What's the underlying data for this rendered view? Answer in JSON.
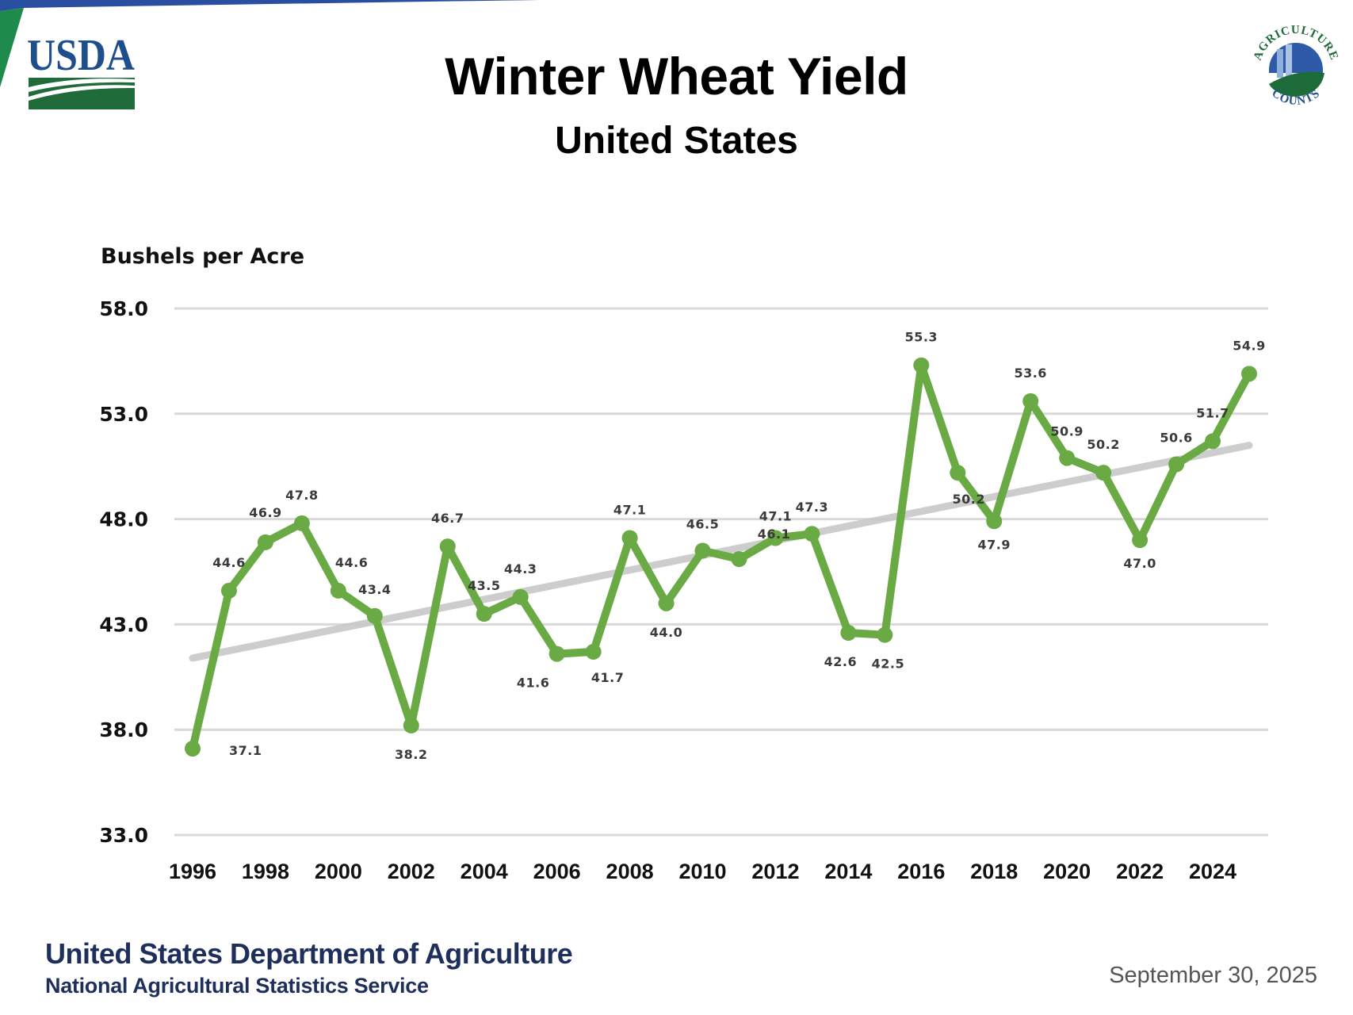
{
  "header": {
    "title": "Winter Wheat Yield",
    "subtitle": "United States",
    "usda_logo_text": "USDA",
    "ag_logo_top_text": "AGRICULTURE",
    "ag_logo_bottom_text": "COUNTS"
  },
  "footer": {
    "organization": "United States Department of Agriculture",
    "agency": "National Agricultural Statistics Service",
    "date": "September 30, 2025"
  },
  "colors": {
    "series": "#6aaa44",
    "trend": "#c8c8c8",
    "grid": "#d9d9d9",
    "usda_blue": "#1f4e8c",
    "usda_green": "#1f6b3a",
    "footer_text": "#1f2f5c"
  },
  "chart_data": {
    "type": "line",
    "title": "Winter Wheat Yield",
    "subtitle": "United States",
    "xlabel": "",
    "ylabel": "Bushels per Acre",
    "ylim": [
      33.0,
      58.0
    ],
    "yticks": [
      "33.0",
      "38.0",
      "43.0",
      "48.0",
      "53.0",
      "58.0"
    ],
    "xticks": [
      "1996",
      "1998",
      "2000",
      "2002",
      "2004",
      "2006",
      "2008",
      "2010",
      "2012",
      "2014",
      "2016",
      "2018",
      "2020",
      "2022",
      "2024"
    ],
    "grid": true,
    "legend": "none",
    "x": [
      1996,
      1997,
      1998,
      1999,
      2000,
      2001,
      2002,
      2003,
      2004,
      2005,
      2006,
      2007,
      2008,
      2009,
      2010,
      2011,
      2012,
      2013,
      2014,
      2015,
      2016,
      2017,
      2018,
      2019,
      2020,
      2021,
      2022,
      2023,
      2024,
      2025
    ],
    "series": [
      {
        "name": "Winter wheat yield",
        "values": [
          37.1,
          44.6,
          46.9,
          47.8,
          44.6,
          43.4,
          38.2,
          46.7,
          43.5,
          44.3,
          41.6,
          41.7,
          47.1,
          44.0,
          46.5,
          46.1,
          47.1,
          47.3,
          42.6,
          42.5,
          55.3,
          50.2,
          47.9,
          53.6,
          50.9,
          50.2,
          47.0,
          50.6,
          51.7,
          54.9
        ],
        "labels": [
          "37.1",
          "44.6",
          "46.9",
          "47.8",
          "44.6",
          "43.4",
          "38.2",
          "46.7",
          "43.5",
          "44.3",
          "41.6",
          "41.7",
          "47.1",
          "44.0",
          "46.5",
          "46.1",
          "47.1",
          "47.3",
          "42.6",
          "42.5",
          "55.3",
          "50.2",
          "47.9",
          "53.6",
          "50.9",
          "50.2",
          "47.0",
          "50.6",
          "51.7",
          "54.9"
        ]
      },
      {
        "name": "Linear trend",
        "type": "trendline",
        "endpoints": [
          [
            1996,
            41.4
          ],
          [
            2025,
            51.5
          ]
        ]
      }
    ]
  }
}
